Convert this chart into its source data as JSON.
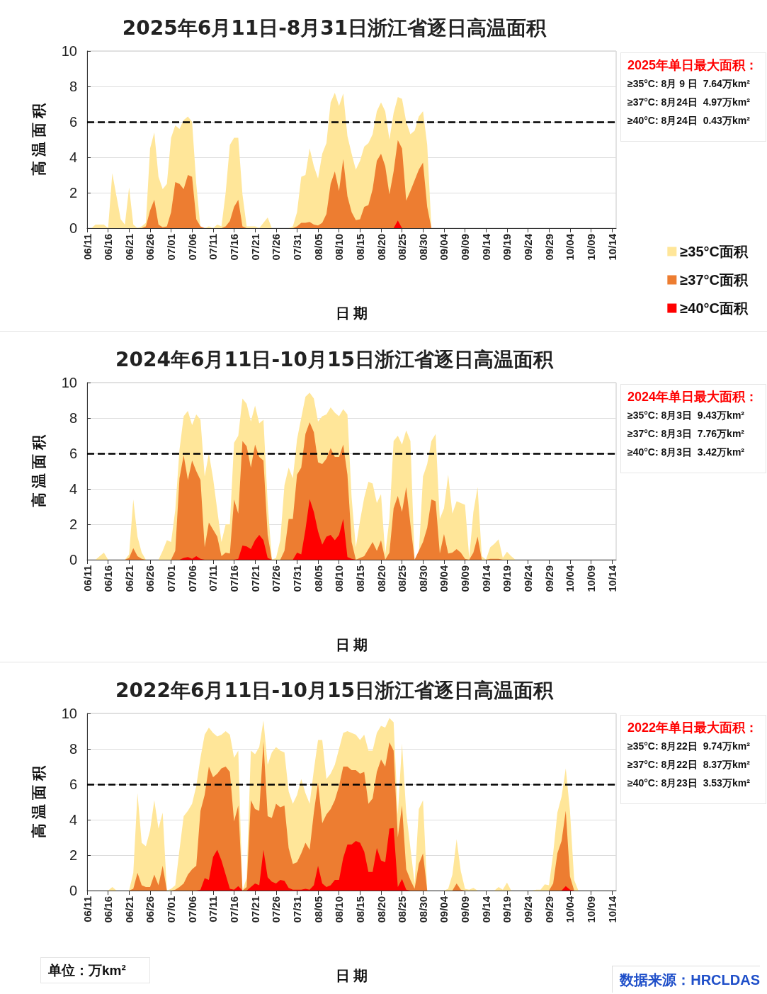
{
  "chart_data": [
    {
      "type": "area",
      "title": "2025年6月11日-8月31日浙江省逐日高温面积",
      "xlabel": "日 期",
      "ylabel": "高 温 面 积",
      "categories": [
        "06/11",
        null,
        null,
        null,
        null,
        "06/16",
        null,
        null,
        null,
        null,
        "06/21",
        null,
        null,
        null,
        null,
        "06/26",
        null,
        null,
        null,
        null,
        "07/01",
        null,
        null,
        null,
        null,
        "07/06",
        null,
        null,
        null,
        null,
        "07/11",
        null,
        null,
        null,
        null,
        "07/16",
        null,
        null,
        null,
        null,
        "07/21",
        null,
        null,
        null,
        null,
        "07/26",
        null,
        null,
        null,
        null,
        "07/31",
        null,
        null,
        null,
        null,
        "08/05",
        null,
        null,
        null,
        null,
        "08/10",
        null,
        null,
        null,
        null,
        "08/15",
        null,
        null,
        null,
        null,
        "08/20",
        null,
        null,
        null,
        null,
        "08/25",
        null,
        null,
        null,
        null,
        "08/30",
        null,
        null,
        null,
        null,
        "09/04",
        null,
        null,
        null,
        null,
        "09/09",
        null,
        null,
        null,
        null,
        "09/14",
        null,
        null,
        null,
        null,
        "09/19",
        null,
        null,
        null,
        null,
        "09/24",
        null,
        null,
        null,
        null,
        "09/29",
        null,
        null,
        null,
        null,
        "10/04",
        null,
        null,
        null,
        null,
        "10/09",
        null,
        null,
        null,
        null,
        "10/14",
        null
      ],
      "series": [
        {
          "name": "≥35°C面积",
          "color": "#ffe699",
          "values": [
            0,
            0,
            0.2,
            0.2,
            0.2,
            0,
            3.1,
            1.8,
            0.5,
            0.2,
            2.3,
            0.2,
            0,
            0.1,
            0.3,
            4.5,
            5.4,
            2.9,
            2.2,
            2.5,
            5.1,
            5.8,
            5.6,
            6.1,
            6.3,
            6,
            2.5,
            0,
            0,
            0.1,
            0,
            0.2,
            0.1,
            2,
            4.7,
            5.1,
            5.1,
            1.9,
            0.1,
            0.1,
            0.1,
            0,
            0.3,
            0.6,
            0,
            0,
            0,
            0,
            0,
            0.1,
            0.9,
            2.9,
            3,
            4.5,
            3.5,
            2.8,
            4.2,
            4.8,
            7.1,
            7.64,
            6.9,
            7.6,
            5.2,
            4.2,
            3.3,
            3.8,
            4.6,
            4.8,
            5.3,
            6.6,
            7.1,
            6.6,
            5,
            6.5,
            7.4,
            7.3,
            6,
            5.3,
            5.5,
            6.3,
            6.6,
            4.7,
            0,
            null,
            null,
            null,
            null,
            null,
            null,
            null,
            null,
            null,
            null,
            null,
            null,
            null,
            null,
            null,
            null,
            null,
            null,
            null,
            null,
            null,
            null,
            null,
            null,
            null,
            null,
            null,
            null,
            null,
            null,
            null,
            null,
            null,
            null,
            null,
            null,
            null,
            null,
            null,
            null,
            null,
            null,
            null,
            null
          ]
        },
        {
          "name": "≥37°C面积",
          "color": "#ed7d31",
          "values": [
            0,
            0,
            0,
            0,
            0,
            0,
            0,
            0,
            0,
            0,
            0,
            0,
            0,
            0,
            0.1,
            1,
            1.6,
            0.2,
            0.05,
            0.1,
            0.9,
            2.6,
            2.5,
            2.2,
            3,
            2.9,
            0.5,
            0.1,
            0,
            0,
            0,
            0,
            0,
            0.1,
            0.4,
            1.2,
            1.6,
            0.1,
            0,
            0,
            0,
            0,
            0,
            0,
            0,
            0,
            0,
            0,
            0,
            0,
            0.1,
            0.3,
            0.3,
            0.35,
            0.2,
            0.15,
            0.3,
            0.8,
            2.5,
            3.2,
            2.1,
            3.9,
            1.8,
            0.9,
            0.45,
            0.5,
            1.2,
            1.3,
            2.2,
            3.8,
            4.2,
            3.5,
            1.9,
            3.2,
            4.97,
            4.5,
            1.55,
            2.1,
            2.7,
            3.3,
            3.7,
            1.2,
            0,
            null,
            null,
            null,
            null,
            null,
            null,
            null,
            null,
            null,
            null,
            null,
            null,
            null,
            null,
            null,
            null,
            null,
            null,
            null,
            null,
            null,
            null,
            null,
            null,
            null,
            null,
            null,
            null,
            null,
            null,
            null,
            null,
            null,
            null,
            null,
            null,
            null,
            null,
            null,
            null,
            null,
            null,
            null,
            null
          ]
        },
        {
          "name": "≥40°C面积",
          "color": "#ff0000",
          "values": [
            0,
            0,
            0,
            0,
            0,
            0,
            0,
            0,
            0,
            0,
            0,
            0,
            0,
            0,
            0,
            0,
            0,
            0,
            0,
            0,
            0,
            0,
            0,
            0,
            0,
            0,
            0,
            0,
            0,
            0,
            0,
            0,
            0,
            0,
            0,
            0,
            0,
            0,
            0,
            0,
            0,
            0,
            0,
            0,
            0,
            0,
            0,
            0,
            0,
            0,
            0,
            0,
            0,
            0,
            0,
            0,
            0,
            0,
            0,
            0,
            0,
            0,
            0,
            0,
            0,
            0,
            0,
            0,
            0,
            0,
            0,
            0,
            0,
            0,
            0.43,
            0,
            0,
            0,
            0,
            0,
            0,
            0,
            0,
            null,
            null,
            null,
            null,
            null,
            null,
            null,
            null,
            null,
            null,
            null,
            null,
            null,
            null,
            null,
            null,
            null,
            null,
            null,
            null,
            null,
            null,
            null,
            null,
            null,
            null,
            null,
            null,
            null,
            null,
            null,
            null,
            null,
            null,
            null,
            null,
            null,
            null,
            null,
            null,
            null,
            null,
            null,
            null
          ]
        }
      ],
      "ylim": [
        0,
        10
      ],
      "yticks": [
        0,
        2,
        4,
        6,
        8,
        10
      ],
      "grid": "y",
      "legend": "right",
      "marker": "none",
      "ref_lines": [
        {
          "axis": "y",
          "value": 6,
          "color": "#000000",
          "line_style": "dashed"
        }
      ],
      "annotations": [
        "2025年单日最大面积：",
        "≥35°C: 8月 9 日  7.64万km²",
        "≥37°C: 8月24日  4.97万km²",
        "≥40°C: 8月24日  0.43万km²"
      ]
    },
    {
      "type": "area",
      "title": "2024年6月11日-10月15日浙江省逐日高温面积",
      "xlabel": "日 期",
      "ylabel": "高 温 面 积",
      "categories": [
        "06/11",
        null,
        null,
        null,
        null,
        "06/16",
        null,
        null,
        null,
        null,
        "06/21",
        null,
        null,
        null,
        null,
        "06/26",
        null,
        null,
        null,
        null,
        "07/01",
        null,
        null,
        null,
        null,
        "07/06",
        null,
        null,
        null,
        null,
        "07/11",
        null,
        null,
        null,
        null,
        "07/16",
        null,
        null,
        null,
        null,
        "07/21",
        null,
        null,
        null,
        null,
        "07/26",
        null,
        null,
        null,
        null,
        "07/31",
        null,
        null,
        null,
        null,
        "08/05",
        null,
        null,
        null,
        null,
        "08/10",
        null,
        null,
        null,
        null,
        "08/15",
        null,
        null,
        null,
        null,
        "08/20",
        null,
        null,
        null,
        null,
        "08/25",
        null,
        null,
        null,
        null,
        "08/30",
        null,
        null,
        null,
        null,
        "09/04",
        null,
        null,
        null,
        null,
        "09/09",
        null,
        null,
        null,
        null,
        "09/14",
        null,
        null,
        null,
        null,
        "09/19",
        null,
        null,
        null,
        null,
        "09/24",
        null,
        null,
        null,
        null,
        "09/29",
        null,
        null,
        null,
        null,
        "10/04",
        null,
        null,
        null,
        null,
        "10/09",
        null,
        null,
        null,
        null,
        "10/14",
        null
      ],
      "series": [
        {
          "color": "#ffe699",
          "values": [
            0,
            0,
            0,
            0.2,
            0.4,
            0,
            0,
            0,
            0,
            0,
            0.3,
            3.4,
            1.3,
            0.4,
            0,
            0,
            0,
            0,
            0.5,
            1.1,
            1,
            2.8,
            6.2,
            8.1,
            8.4,
            7.6,
            8.2,
            7.9,
            4.7,
            6,
            4.6,
            2.8,
            1,
            2,
            2,
            6.6,
            7,
            9.1,
            8.8,
            7.8,
            8.7,
            7.7,
            7.9,
            3.2,
            0,
            0.1,
            1.1,
            4.2,
            5.2,
            4.6,
            6.8,
            8,
            9.2,
            9.43,
            9.1,
            7.8,
            8.1,
            8.2,
            8.6,
            8.3,
            8.1,
            8.5,
            8.2,
            3.5,
            0.7,
            2.2,
            3.5,
            4.4,
            4.3,
            3.2,
            3.7,
            0.3,
            2.3,
            6.7,
            7,
            6.5,
            7.3,
            6.7,
            0,
            0.3,
            4.7,
            5.4,
            6.7,
            7.1,
            2.3,
            2.9,
            4.8,
            2.6,
            3.3,
            3.2,
            3.1,
            0.1,
            2.7,
            4.1,
            0.2,
            0,
            0.7,
            0.9,
            1.15,
            0.1,
            0.45,
            0.2,
            0,
            0,
            0,
            0,
            0,
            0,
            0,
            0,
            0,
            0,
            0,
            0,
            0,
            0,
            0,
            0,
            0,
            0,
            0,
            0,
            0,
            0,
            0,
            0,
            0
          ]
        },
        {
          "color": "#ed7d31",
          "values": [
            0,
            0,
            0,
            0,
            0,
            0,
            0,
            0,
            0,
            0,
            0.1,
            0.65,
            0.2,
            0.05,
            0,
            0,
            0,
            0,
            0,
            0,
            0,
            0.5,
            4.6,
            5.9,
            4.5,
            5.6,
            5,
            4.5,
            0.7,
            2.1,
            1.7,
            1.3,
            0.2,
            0.4,
            0.35,
            3.4,
            2.6,
            6.7,
            6.4,
            5.2,
            6.5,
            5.8,
            5.6,
            1.4,
            0,
            0,
            0,
            0.5,
            2.3,
            2.3,
            4.8,
            5.2,
            7.1,
            7.76,
            7.2,
            5.5,
            5.4,
            5.7,
            6.3,
            5.8,
            5.8,
            6.5,
            4.8,
            1,
            0,
            0.1,
            0.2,
            0.6,
            1,
            0.5,
            1.1,
            0,
            0.4,
            2.9,
            3.6,
            2.7,
            4.1,
            2,
            0,
            0.5,
            1,
            1.8,
            3.4,
            3.3,
            0.35,
            1.45,
            0.35,
            0.4,
            0.6,
            0.4,
            0.05,
            0,
            0.4,
            1.3,
            0,
            0,
            0.05,
            0.05,
            0.05,
            0,
            0,
            0,
            0,
            0,
            0,
            0,
            0,
            0,
            0,
            0,
            0,
            0,
            0,
            0,
            0,
            0,
            0,
            0,
            0,
            0,
            0,
            0,
            0,
            0,
            0,
            0,
            0
          ]
        },
        {
          "color": "#ff0000",
          "values": [
            0,
            0,
            0,
            0,
            0,
            0,
            0,
            0,
            0,
            0,
            0,
            0,
            0,
            0,
            0,
            0,
            0,
            0,
            0,
            0,
            0,
            0,
            0,
            0.1,
            0.15,
            0.05,
            0.2,
            0.05,
            0,
            0,
            0,
            0,
            0,
            0,
            0,
            0,
            0.05,
            0.8,
            0.75,
            0.6,
            1.1,
            1.4,
            1.1,
            0.1,
            0,
            0,
            0,
            0,
            0,
            0,
            0.4,
            0.3,
            1.7,
            3.42,
            2.7,
            1.6,
            0.85,
            1.3,
            1.4,
            1.1,
            1.4,
            2.3,
            0.15,
            0.05,
            0,
            0,
            0,
            0,
            0,
            0,
            0,
            0,
            0,
            0,
            0,
            0,
            0,
            0,
            0,
            0,
            0,
            0,
            0,
            0,
            0,
            0,
            0,
            0,
            0,
            0,
            0,
            0,
            0,
            0,
            0,
            0,
            0,
            0,
            0,
            0,
            0,
            0,
            0,
            0,
            0,
            0,
            0,
            0,
            0,
            0,
            0,
            0,
            0,
            0,
            0,
            0,
            0,
            0,
            0,
            0,
            0,
            0,
            0,
            0,
            0,
            0,
            0
          ]
        }
      ],
      "ylim": [
        0,
        10
      ],
      "yticks": [
        0,
        2,
        4,
        6,
        8,
        10
      ],
      "grid": "y",
      "marker": "none",
      "ref_lines": [
        {
          "axis": "y",
          "value": 6,
          "color": "#000000",
          "line_style": "dashed"
        }
      ],
      "annotations": [
        "2024年单日最大面积：",
        "≥35°C: 8月3日  9.43万km²",
        "≥37°C: 8月3日  7.76万km²",
        "≥40°C: 8月3日  3.42万km²"
      ]
    },
    {
      "type": "area",
      "title": "2022年6月11日-10月15日浙江省逐日高温面积",
      "xlabel": "日 期",
      "ylabel": "高 温 面 积",
      "categories": [
        "06/11",
        null,
        null,
        null,
        null,
        "06/16",
        null,
        null,
        null,
        null,
        "06/21",
        null,
        null,
        null,
        null,
        "06/26",
        null,
        null,
        null,
        null,
        "07/01",
        null,
        null,
        null,
        null,
        "07/06",
        null,
        null,
        null,
        null,
        "07/11",
        null,
        null,
        null,
        null,
        "07/16",
        null,
        null,
        null,
        null,
        "07/21",
        null,
        null,
        null,
        null,
        "07/26",
        null,
        null,
        null,
        null,
        "07/31",
        null,
        null,
        null,
        null,
        "08/05",
        null,
        null,
        null,
        null,
        "08/10",
        null,
        null,
        null,
        null,
        "08/15",
        null,
        null,
        null,
        null,
        "08/20",
        null,
        null,
        null,
        null,
        "08/25",
        null,
        null,
        null,
        null,
        "08/30",
        null,
        null,
        null,
        null,
        "09/04",
        null,
        null,
        null,
        null,
        "09/09",
        null,
        null,
        null,
        null,
        "09/14",
        null,
        null,
        null,
        null,
        "09/19",
        null,
        null,
        null,
        null,
        "09/24",
        null,
        null,
        null,
        null,
        "09/29",
        null,
        null,
        null,
        null,
        "10/04",
        null,
        null,
        null,
        null,
        "10/09",
        null,
        null,
        null,
        null,
        "10/14",
        null
      ],
      "series": [
        {
          "color": "#ffe699",
          "values": [
            0,
            0,
            0,
            0,
            0,
            0,
            0.2,
            0,
            0,
            0,
            0,
            1,
            5.5,
            2.7,
            2.5,
            3.4,
            5.1,
            3.5,
            4.4,
            0,
            0.1,
            0.3,
            2.3,
            4.2,
            4.5,
            4.9,
            5.9,
            7.5,
            8.8,
            9.2,
            8.9,
            8.7,
            8.8,
            9,
            8.8,
            7.5,
            7.9,
            0,
            0.7,
            7.9,
            7.7,
            8.1,
            9.6,
            7.1,
            7.8,
            8.1,
            7.9,
            7.8,
            5.6,
            4.9,
            5.4,
            6.3,
            5.5,
            4.9,
            6.8,
            8.5,
            8.5,
            6.3,
            6.6,
            7.1,
            8,
            8.9,
            9,
            8.9,
            8.8,
            8.5,
            8.8,
            7.9,
            7.9,
            8.9,
            9.3,
            9.2,
            9.74,
            9.5,
            4.3,
            8.3,
            4.4,
            2.4,
            0.4,
            4.6,
            5.1,
            0,
            0,
            0,
            0,
            0,
            0.1,
            0.9,
            2.9,
            1.1,
            0.1,
            0.05,
            0.15,
            0,
            0,
            0,
            0,
            0,
            0.2,
            0.05,
            0.45,
            0,
            0,
            0,
            0,
            0,
            0,
            0.05,
            0.05,
            0.35,
            0.3,
            2.1,
            4.4,
            5.3,
            6.9,
            4.5,
            0.6,
            0,
            0,
            0,
            0,
            0,
            0,
            0,
            0,
            0,
            0
          ]
        },
        {
          "color": "#ed7d31",
          "values": [
            0,
            0,
            0,
            0,
            0,
            0,
            0,
            0,
            0,
            0,
            0,
            0.1,
            1,
            0.3,
            0.2,
            0.2,
            0.9,
            0.3,
            1.4,
            0,
            0,
            0.05,
            0.2,
            0.4,
            0.9,
            1.2,
            1.4,
            4.5,
            5.4,
            7,
            6.4,
            6.6,
            6.9,
            7,
            6.7,
            3.9,
            4.8,
            0,
            0.2,
            5.1,
            4.6,
            4.5,
            8.4,
            4.2,
            4.1,
            4.9,
            4.7,
            4.8,
            2.4,
            1.5,
            1.6,
            2.1,
            2.7,
            2.3,
            4.4,
            6.1,
            3.8,
            4.3,
            4.6,
            5.1,
            5.9,
            7,
            7,
            6.8,
            6.8,
            6.6,
            6.7,
            4.9,
            5.2,
            6.7,
            7.4,
            7,
            8.37,
            7.9,
            3,
            4.8,
            1.2,
            0.6,
            0.1,
            1.5,
            2.1,
            0,
            0,
            0,
            0,
            0,
            0,
            0,
            0.4,
            0.05,
            0,
            0,
            0,
            0,
            0,
            0,
            0,
            0,
            0,
            0,
            0,
            0,
            0,
            0,
            0,
            0,
            0,
            0,
            0,
            0,
            0,
            0.4,
            2.1,
            2.8,
            4.5,
            0.8,
            0,
            0,
            0,
            0,
            0,
            0,
            0,
            0,
            0,
            0,
            0
          ]
        },
        {
          "color": "#ff0000",
          "values": [
            0,
            0,
            0,
            0,
            0,
            0,
            0,
            0,
            0,
            0,
            0,
            0,
            0,
            0,
            0,
            0,
            0,
            0,
            0,
            0,
            0,
            0,
            0,
            0,
            0,
            0,
            0,
            0.05,
            0.7,
            0.6,
            1.9,
            2.3,
            1.7,
            0.9,
            0.1,
            0.05,
            0.25,
            0,
            0,
            0.2,
            0.4,
            0.3,
            2.3,
            0.75,
            0.5,
            0.4,
            0.6,
            0.55,
            0.15,
            0.05,
            0.05,
            0.05,
            0.1,
            0.05,
            0.3,
            1.4,
            0.4,
            0.2,
            0.3,
            0.6,
            0.6,
            1.85,
            2.6,
            2.6,
            2.8,
            2.7,
            2.2,
            1.05,
            1.05,
            2.4,
            1.7,
            1.6,
            3.5,
            3.53,
            0.2,
            0.65,
            0.05,
            0,
            0,
            0,
            0,
            0,
            0,
            0,
            0,
            0,
            0,
            0,
            0,
            0,
            0,
            0,
            0,
            0,
            0,
            0,
            0,
            0,
            0,
            0,
            0,
            0,
            0,
            0,
            0,
            0,
            0,
            0,
            0,
            0,
            0,
            0,
            0,
            0,
            0.25,
            0.05,
            0,
            0,
            0,
            0,
            0,
            0,
            0,
            0,
            0,
            0,
            0
          ]
        }
      ],
      "ylim": [
        0,
        10
      ],
      "yticks": [
        0,
        2,
        4,
        6,
        8,
        10
      ],
      "grid": "y",
      "marker": "none",
      "ref_lines": [
        {
          "axis": "y",
          "value": 6,
          "color": "#000000",
          "line_style": "dashed"
        }
      ],
      "annotations": [
        "2022年单日最大面积：",
        "≥35°C: 8月22日  9.74万km²",
        "≥37°C: 8月22日  8.37万km²",
        "≥40°C: 8月23日  3.53万km²",
        "单位：万km²",
        "数据来源：HRCLDAS"
      ]
    }
  ]
}
